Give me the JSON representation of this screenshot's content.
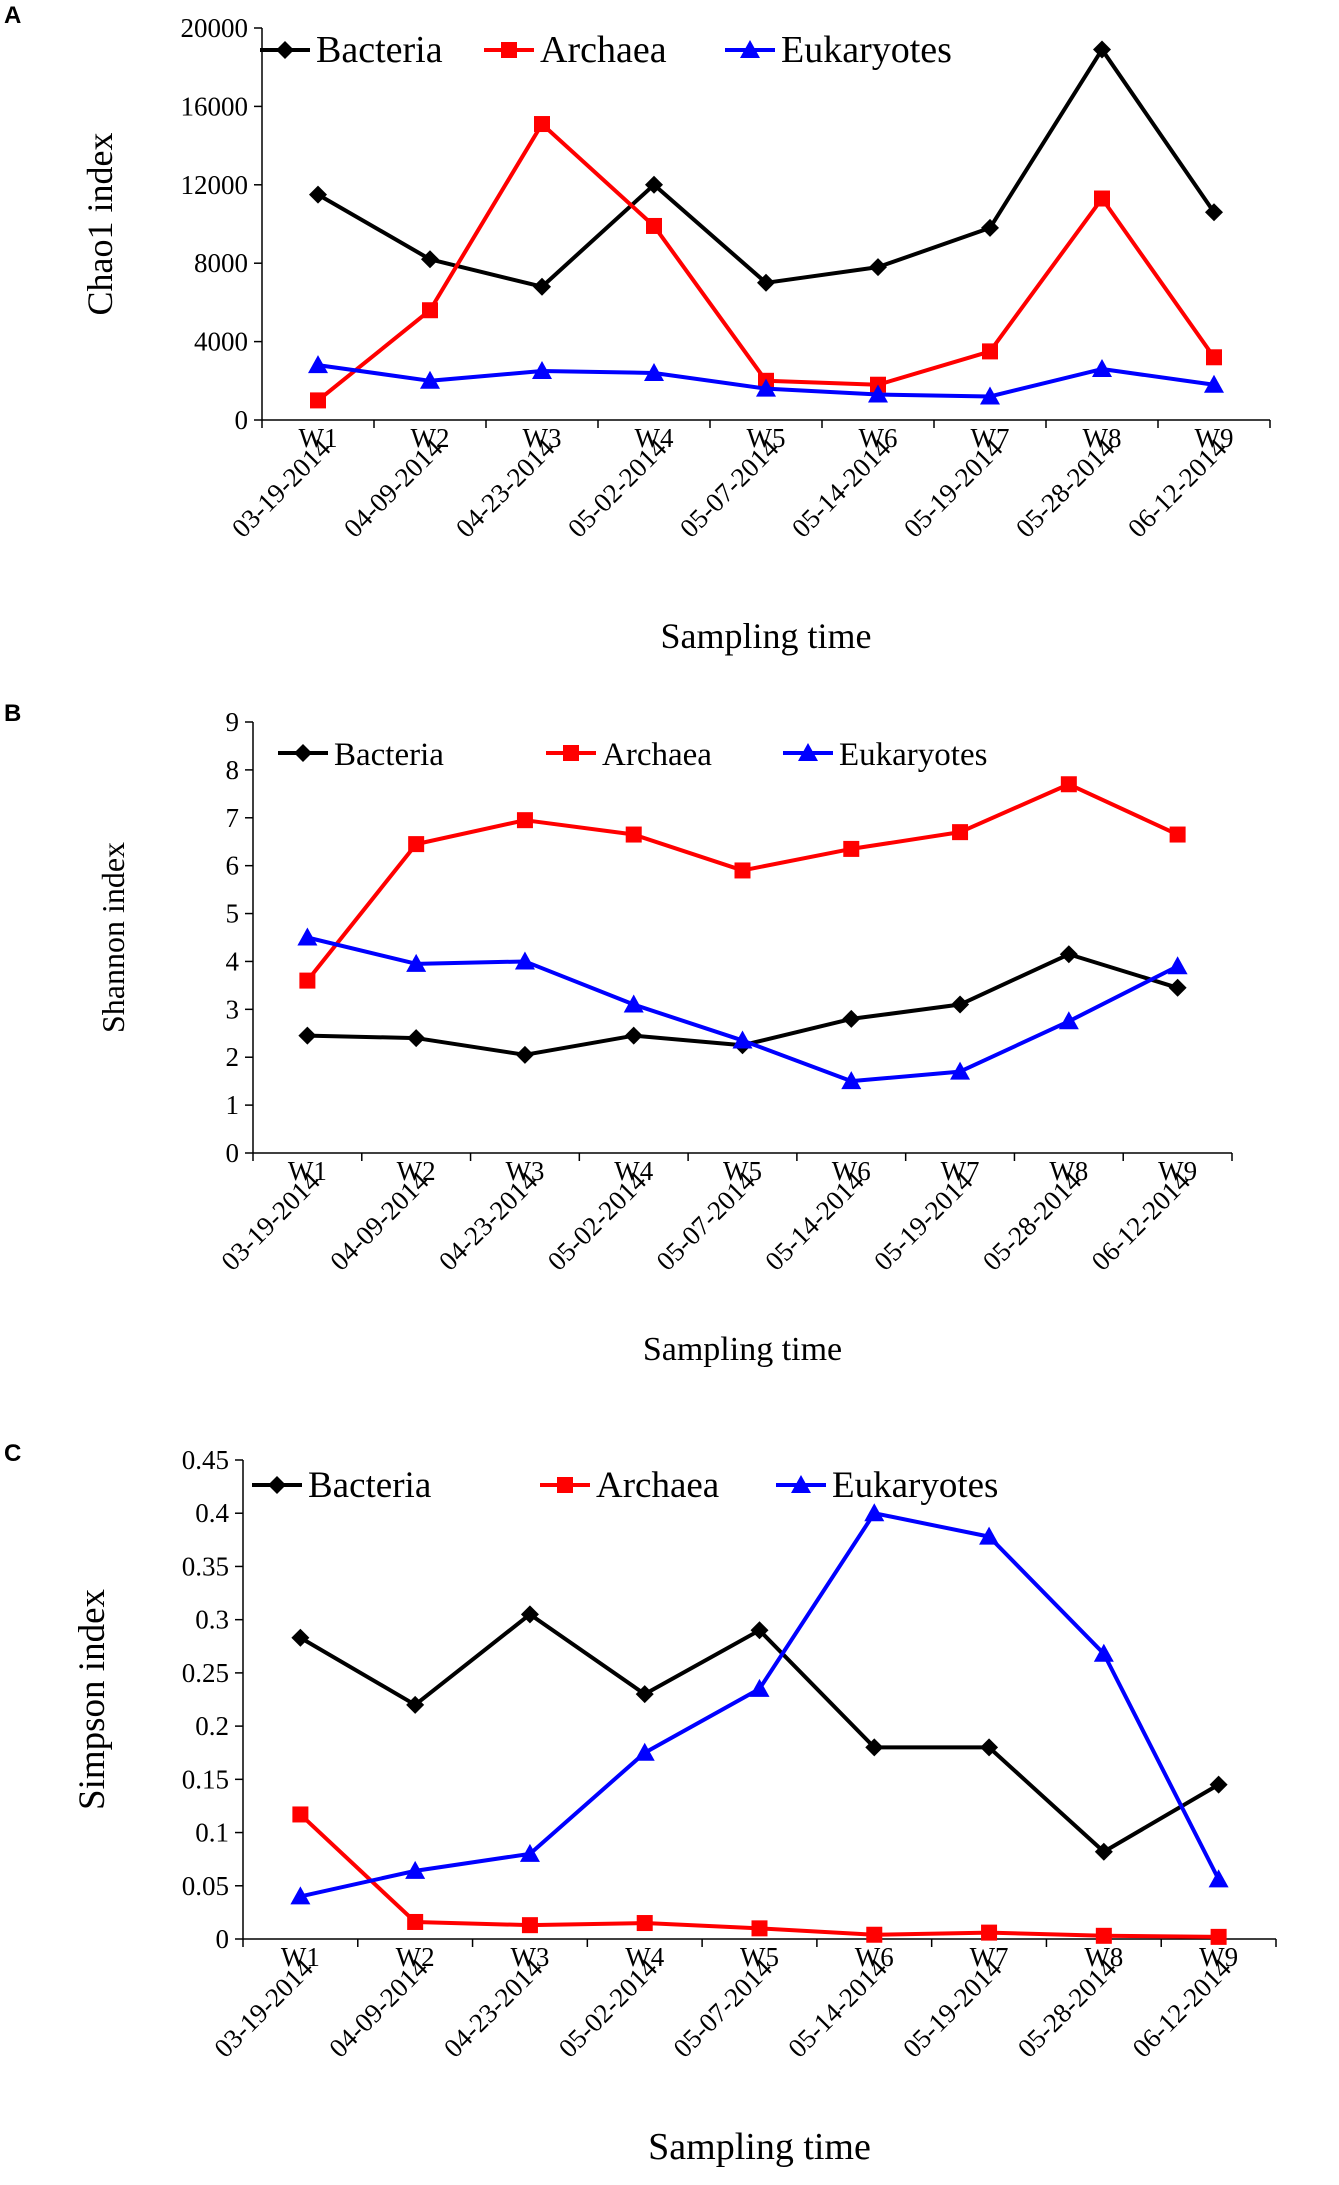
{
  "chart_data": [
    {
      "type": "line",
      "panel": "A",
      "categories": [
        "W1",
        "W2",
        "W3",
        "W4",
        "W5",
        "W6",
        "W7",
        "W8",
        "W9"
      ],
      "dates": [
        "03-19-2014",
        "04-09-2014",
        "04-23-2014",
        "05-02-2014",
        "05-07-2014",
        "05-14-2014",
        "05-19-2014",
        "05-28-2014",
        "06-12-2014"
      ],
      "ylabel": "Chao1 index",
      "xlabel": "Sampling time",
      "ylim": [
        0,
        20000
      ],
      "yticks": [
        0,
        4000,
        8000,
        12000,
        16000,
        20000
      ],
      "ytick_labels": [
        "0",
        "4000",
        "8000",
        "12000",
        "16000",
        "20000"
      ],
      "series": [
        {
          "name": "Bacteria",
          "color": "#000000",
          "marker": "diamond",
          "values": [
            11500,
            8200,
            6800,
            12000,
            7000,
            7800,
            9800,
            18900,
            10600
          ]
        },
        {
          "name": "Archaea",
          "color": "#ff0000",
          "marker": "square",
          "values": [
            1000,
            5600,
            15100,
            9900,
            2000,
            1800,
            3500,
            11300,
            3200
          ]
        },
        {
          "name": "Eukaryotes",
          "color": "#0000ff",
          "marker": "triangle",
          "values": [
            2800,
            2000,
            2500,
            2400,
            1600,
            1300,
            1200,
            2600,
            1800
          ]
        }
      ]
    },
    {
      "type": "line",
      "panel": "B",
      "categories": [
        "W1",
        "W2",
        "W3",
        "W4",
        "W5",
        "W6",
        "W7",
        "W8",
        "W9"
      ],
      "dates": [
        "03-19-2014",
        "04-09-2014",
        "04-23-2014",
        "05-02-2014",
        "05-07-2014",
        "05-14-2014",
        "05-19-2014",
        "05-28-2014",
        "06-12-2014"
      ],
      "ylabel": "Shannon index",
      "xlabel": "Sampling time",
      "ylim": [
        0,
        9
      ],
      "yticks": [
        0,
        1,
        2,
        3,
        4,
        5,
        6,
        7,
        8,
        9
      ],
      "ytick_labels": [
        "0",
        "1",
        "2",
        "3",
        "4",
        "5",
        "6",
        "7",
        "8",
        "9"
      ],
      "series": [
        {
          "name": "Bacteria",
          "color": "#000000",
          "marker": "diamond",
          "values": [
            2.45,
            2.4,
            2.05,
            2.45,
            2.25,
            2.8,
            3.1,
            4.15,
            3.45
          ]
        },
        {
          "name": "Archaea",
          "color": "#ff0000",
          "marker": "square",
          "values": [
            3.6,
            6.45,
            6.95,
            6.65,
            5.9,
            6.35,
            6.7,
            7.7,
            6.65
          ]
        },
        {
          "name": "Eukaryotes",
          "color": "#0000ff",
          "marker": "triangle",
          "values": [
            4.5,
            3.95,
            4.0,
            3.1,
            2.35,
            1.5,
            1.7,
            2.75,
            3.9
          ]
        }
      ]
    },
    {
      "type": "line",
      "panel": "C",
      "categories": [
        "W1",
        "W2",
        "W3",
        "W4",
        "W5",
        "W6",
        "W7",
        "W8",
        "W9"
      ],
      "dates": [
        "03-19-2014",
        "04-09-2014",
        "04-23-2014",
        "05-02-2014",
        "05-07-2014",
        "05-14-2014",
        "05-19-2014",
        "05-28-2014",
        "06-12-2014"
      ],
      "ylabel": "Simpson index",
      "xlabel": "Sampling time",
      "ylim": [
        0,
        0.45
      ],
      "yticks": [
        0,
        0.05,
        0.1,
        0.15,
        0.2,
        0.25,
        0.3,
        0.35,
        0.4,
        0.45
      ],
      "ytick_labels": [
        "0",
        "0.05",
        "0.1",
        "0.15",
        "0.2",
        "0.25",
        "0.3",
        "0.35",
        "0.4",
        "0.45"
      ],
      "series": [
        {
          "name": "Bacteria",
          "color": "#000000",
          "marker": "diamond",
          "values": [
            0.283,
            0.22,
            0.305,
            0.23,
            0.29,
            0.18,
            0.18,
            0.082,
            0.145
          ]
        },
        {
          "name": "Archaea",
          "color": "#ff0000",
          "marker": "square",
          "values": [
            0.117,
            0.016,
            0.013,
            0.015,
            0.01,
            0.004,
            0.006,
            0.003,
            0.002
          ]
        },
        {
          "name": "Eukaryotes",
          "color": "#0000ff",
          "marker": "triangle",
          "values": [
            0.04,
            0.064,
            0.08,
            0.175,
            0.235,
            0.4,
            0.378,
            0.268,
            0.056
          ]
        }
      ]
    }
  ]
}
